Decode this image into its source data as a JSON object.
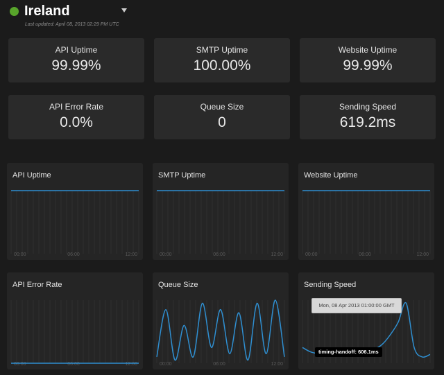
{
  "header": {
    "region": "Ireland",
    "status_color": "#58a52b",
    "last_updated": "Last updated: April 08, 2013 02:29 PM UTC",
    "dropdown_icon": "chevron-down-icon"
  },
  "stats": [
    {
      "label": "API Uptime",
      "value": "99.99%"
    },
    {
      "label": "SMTP Uptime",
      "value": "100.00%"
    },
    {
      "label": "Website Uptime",
      "value": "99.99%"
    },
    {
      "label": "API Error Rate",
      "value": "0.0%"
    },
    {
      "label": "Queue Size",
      "value": "0"
    },
    {
      "label": "Sending Speed",
      "value": "619.2ms"
    }
  ],
  "chart_data": [
    {
      "type": "line",
      "title": "API Uptime",
      "x_ticks": [
        "00:00",
        "06:00",
        "12:00"
      ],
      "x": [
        0,
        1,
        2,
        3,
        4,
        5,
        6,
        7,
        8,
        9,
        10,
        11,
        12,
        13,
        14
      ],
      "values": [
        99.99,
        99.99,
        99.99,
        99.99,
        99.99,
        99.99,
        99.99,
        99.99,
        99.99,
        99.99,
        99.99,
        99.99,
        99.99,
        99.99,
        99.99
      ],
      "ylim": [
        0,
        100
      ],
      "color": "#2f8fd1",
      "grid": true
    },
    {
      "type": "line",
      "title": "SMTP Uptime",
      "x_ticks": [
        "00:00",
        "06:00",
        "12:00"
      ],
      "x": [
        0,
        1,
        2,
        3,
        4,
        5,
        6,
        7,
        8,
        9,
        10,
        11,
        12,
        13,
        14
      ],
      "values": [
        100,
        100,
        100,
        100,
        100,
        100,
        100,
        100,
        100,
        100,
        100,
        100,
        100,
        100,
        100
      ],
      "ylim": [
        0,
        100
      ],
      "color": "#2f8fd1",
      "grid": true
    },
    {
      "type": "line",
      "title": "Website Uptime",
      "x_ticks": [
        "00:00",
        "06:00",
        "12:00"
      ],
      "x": [
        0,
        1,
        2,
        3,
        4,
        5,
        6,
        7,
        8,
        9,
        10,
        11,
        12,
        13,
        14
      ],
      "values": [
        99.99,
        99.99,
        99.99,
        99.99,
        99.99,
        99.99,
        99.99,
        99.99,
        99.99,
        99.99,
        99.99,
        99.99,
        99.99,
        99.99,
        99.99
      ],
      "ylim": [
        0,
        100
      ],
      "color": "#2f8fd1",
      "grid": true
    },
    {
      "type": "line",
      "title": "API Error Rate",
      "x_ticks": [
        "00:00",
        "06:00",
        "12:00"
      ],
      "x": [
        0,
        1,
        2,
        3,
        4,
        5,
        6,
        7,
        8,
        9,
        10,
        11,
        12,
        13,
        14
      ],
      "values": [
        0,
        0,
        0,
        0,
        0,
        0,
        0,
        0,
        0,
        0,
        0,
        0,
        0,
        0,
        0
      ],
      "ylim": [
        0,
        100
      ],
      "color": "#2f8fd1",
      "grid": true
    },
    {
      "type": "line",
      "title": "Queue Size",
      "x_ticks": [
        "00:00",
        "06:00",
        "12:00"
      ],
      "x": [
        0,
        1,
        2,
        3,
        4,
        5,
        6,
        7,
        8,
        9,
        10,
        11,
        12,
        13,
        14
      ],
      "values": [
        10,
        85,
        5,
        60,
        10,
        95,
        25,
        85,
        15,
        80,
        5,
        95,
        15,
        100,
        10
      ],
      "ylim": [
        0,
        100
      ],
      "color": "#2f8fd1",
      "grid": true
    },
    {
      "type": "line",
      "title": "Sending Speed",
      "x_ticks": [],
      "x": [
        0,
        1,
        2,
        3,
        4,
        5,
        6,
        7,
        8,
        9,
        10,
        11,
        12,
        13,
        14,
        15,
        16
      ],
      "values": [
        25,
        18,
        15,
        14,
        15,
        16,
        15,
        17,
        18,
        22,
        30,
        45,
        65,
        95,
        25,
        10,
        14
      ],
      "ylim": [
        0,
        100
      ],
      "color": "#2f8fd1",
      "grid": true,
      "tooltip": {
        "date": "Mon, 08 Apr 2013 01:00:00 GMT",
        "value": "timing-handoff: 606.1ms"
      }
    }
  ]
}
